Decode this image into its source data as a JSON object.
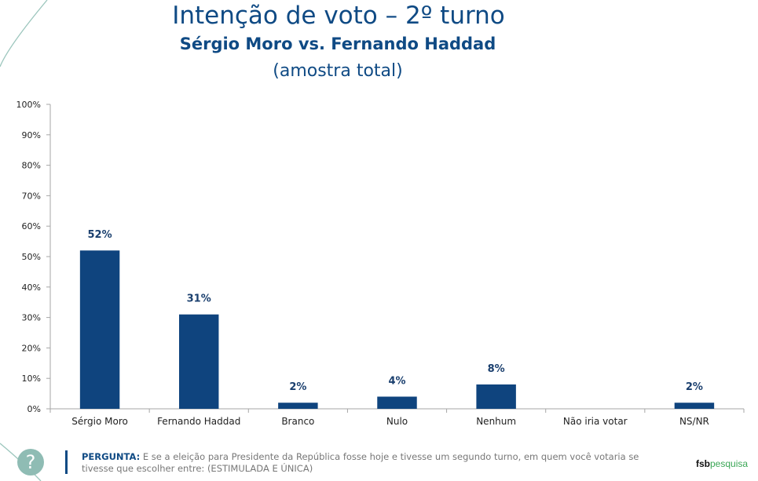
{
  "header": {
    "title": "Intenção de voto – 2º turno",
    "subtitle": "Sérgio Moro vs. Fernando Haddad",
    "sample_note": "(amostra total)"
  },
  "colors": {
    "bar": "#0f447e",
    "title": "#0f4a84",
    "decor_line": "#9cc6bd",
    "help_circle": "#8fbcb4",
    "logo_green": "#3aa655"
  },
  "chart_data": {
    "type": "bar",
    "title": "Intenção de voto – 2º turno",
    "subtitle": "Sérgio Moro vs. Fernando Haddad (amostra total)",
    "categories": [
      "Sérgio Moro",
      "Fernando Haddad",
      "Branco",
      "Nulo",
      "Nenhum",
      "Não iria votar",
      "NS/NR"
    ],
    "values": [
      52,
      31,
      2,
      4,
      8,
      0,
      2
    ],
    "data_labels": [
      "52%",
      "31%",
      "2%",
      "4%",
      "8%",
      "",
      "2%"
    ],
    "xlabel": "",
    "ylabel": "",
    "ylim": [
      0,
      100
    ],
    "yticks": [
      0,
      10,
      20,
      30,
      40,
      50,
      60,
      70,
      80,
      90,
      100
    ],
    "ytick_labels": [
      "0%",
      "10%",
      "20%",
      "30%",
      "40%",
      "50%",
      "60%",
      "70%",
      "80%",
      "90%",
      "100%"
    ],
    "grid": false,
    "legend": "none"
  },
  "footer": {
    "help_icon": "?",
    "question_label": "PERGUNTA:",
    "question_text": " E se a eleição para Presidente da República fosse hoje e tivesse um segundo turno, em quem você votaria se tivesse que escolher entre: (ESTIMULADA E ÚNICA)",
    "logo_part1": "fsb",
    "logo_part2": "pesquisa"
  }
}
